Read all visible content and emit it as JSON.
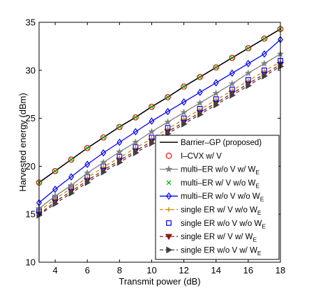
{
  "chart_data": {
    "type": "line",
    "title": "",
    "xlabel": "Transmit power (dB)",
    "ylabel": "Harvested energy (dBm)",
    "xlim": [
      3,
      18
    ],
    "ylim": [
      10,
      35
    ],
    "xticks": [
      4,
      6,
      8,
      10,
      12,
      14,
      16,
      18
    ],
    "yticks": [
      10,
      15,
      20,
      25,
      30,
      35
    ],
    "grid": false,
    "legend_position": "bottom-right",
    "x": [
      3,
      4,
      5,
      6,
      7,
      8,
      9,
      10,
      11,
      12,
      13,
      14,
      15,
      16,
      17,
      18
    ],
    "series": [
      {
        "name": "Barrier–GP (proposed)",
        "color": "#000000",
        "line": "solid",
        "marker": "none",
        "values": [
          18.3,
          19.5,
          20.7,
          21.9,
          23.0,
          24.1,
          25.1,
          26.2,
          27.2,
          28.3,
          29.3,
          30.3,
          31.3,
          32.3,
          33.3,
          34.3
        ]
      },
      {
        "name": "I–CVX w/ V",
        "color": "#ff0000",
        "line": "none",
        "marker": "circle",
        "values": [
          18.3,
          19.5,
          20.7,
          21.9,
          23.0,
          24.1,
          25.1,
          26.2,
          27.2,
          28.3,
          29.3,
          30.3,
          31.3,
          32.3,
          33.3,
          34.3
        ]
      },
      {
        "name": "multi–ER w/o V w/ W_E",
        "color": "#808080",
        "line": "solid",
        "marker": "star",
        "values": [
          15.6,
          16.9,
          18.0,
          19.3,
          20.4,
          21.5,
          22.5,
          23.6,
          24.6,
          25.6,
          26.6,
          27.6,
          28.6,
          29.7,
          30.7,
          31.7
        ]
      },
      {
        "name": "multi–ER w/ V w/o W_E",
        "color": "#00b000",
        "line": "none",
        "marker": "x",
        "values": [
          18.3,
          19.5,
          20.7,
          21.9,
          23.0,
          24.1,
          25.1,
          26.2,
          27.2,
          28.3,
          29.3,
          30.3,
          31.3,
          32.3,
          33.3,
          34.3
        ]
      },
      {
        "name": "multi–ER w/o V w/o W_E",
        "color": "#0000ff",
        "line": "solid",
        "marker": "diamond",
        "values": [
          16.2,
          17.6,
          18.9,
          20.2,
          21.4,
          22.5,
          23.6,
          24.7,
          25.7,
          26.7,
          27.7,
          28.7,
          29.7,
          30.7,
          31.7,
          33.2
        ]
      },
      {
        "name": "single ER w/ V w/o W_E",
        "color": "#cc8800",
        "line": "dashed",
        "marker": "plus",
        "values": [
          15.3,
          16.6,
          17.7,
          18.8,
          19.9,
          20.9,
          21.9,
          22.9,
          23.9,
          24.9,
          25.9,
          26.9,
          27.9,
          28.9,
          29.9,
          30.9
        ]
      },
      {
        "name": "single ER w/o V w/o W_E",
        "color": "#0000ff",
        "line": "none",
        "marker": "square",
        "values": [
          15.4,
          16.7,
          17.8,
          18.9,
          20.0,
          21.0,
          22.0,
          23.0,
          24.0,
          25.0,
          26.0,
          27.0,
          28.0,
          29.0,
          30.0,
          31.0
        ]
      },
      {
        "name": "single ER w/ V w/ W_E",
        "color": "#8b1a1a",
        "line": "dashed",
        "marker": "triangle-down",
        "values": [
          15.0,
          16.3,
          17.4,
          18.5,
          19.6,
          20.6,
          21.6,
          22.6,
          23.6,
          24.6,
          25.6,
          26.6,
          27.6,
          28.6,
          29.6,
          30.6
        ]
      },
      {
        "name": "single ER w/o V w/ W_E",
        "color": "#404040",
        "line": "dashed",
        "marker": "triangle-right",
        "values": [
          14.9,
          16.1,
          17.2,
          18.3,
          19.4,
          20.4,
          21.4,
          22.4,
          23.4,
          24.4,
          25.4,
          26.4,
          27.4,
          28.4,
          29.4,
          30.4
        ]
      }
    ]
  }
}
